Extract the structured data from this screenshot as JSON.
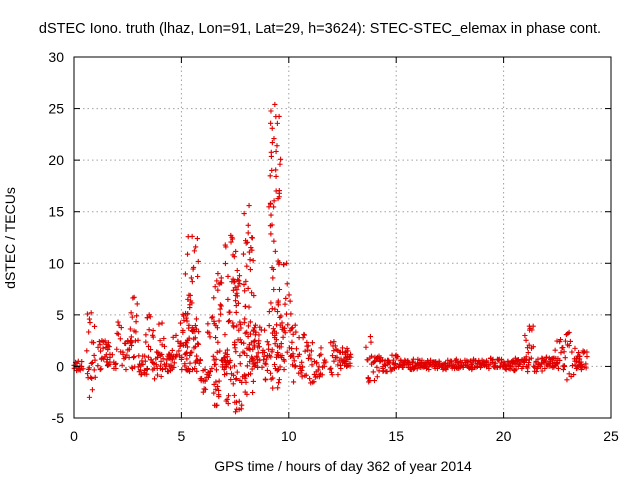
{
  "chart_data": {
    "type": "scatter",
    "title": "dSTEC Iono. truth (lhaz, Lon=91, Lat=29, h=3624): STEC-STEC_elemax in phase cont.",
    "xlabel": "GPS time / hours of day 362 of year 2014",
    "ylabel": "dSTEC  / TECUs",
    "xlim": [
      0,
      25
    ],
    "ylim": [
      -5,
      30
    ],
    "x_ticks": [
      0,
      5,
      10,
      15,
      20,
      25
    ],
    "x_tick_labels": [
      "0",
      "5",
      "10",
      "15",
      "20",
      "25"
    ],
    "y_ticks": [
      -5,
      0,
      5,
      10,
      15,
      20,
      25,
      30
    ],
    "y_tick_labels": [
      "-5",
      "0",
      "5",
      "10",
      "15",
      "20",
      "25",
      "30"
    ],
    "grid": true,
    "legend": "none",
    "marker": "plus",
    "color": "#e00000",
    "arcs": [
      {
        "x": [
          0.0,
          0.4
        ],
        "y": [
          -0.4,
          0.5
        ]
      },
      {
        "x": [
          0.6,
          1.0
        ],
        "y": [
          -3.0,
          5.2
        ]
      },
      {
        "x": [
          1.1,
          1.5
        ],
        "y": [
          -0.3,
          2.5
        ]
      },
      {
        "x": [
          1.5,
          1.7
        ],
        "y": [
          0.1,
          2.3
        ]
      },
      {
        "x": [
          1.8,
          2.3
        ],
        "y": [
          -0.2,
          4.3
        ]
      },
      {
        "x": [
          2.3,
          2.7
        ],
        "y": [
          -0.3,
          2.5
        ]
      },
      {
        "x": [
          2.6,
          3.0
        ],
        "y": [
          -0.2,
          6.7
        ]
      },
      {
        "x": [
          3.0,
          3.4
        ],
        "y": [
          -0.8,
          1.0
        ]
      },
      {
        "x": [
          3.3,
          3.7
        ],
        "y": [
          -0.2,
          5.0
        ]
      },
      {
        "x": [
          3.6,
          4.1
        ],
        "y": [
          -1.2,
          1.4
        ]
      },
      {
        "x": [
          3.9,
          4.3
        ],
        "y": [
          -0.2,
          4.2
        ]
      },
      {
        "x": [
          4.3,
          4.6
        ],
        "y": [
          -0.5,
          1.2
        ]
      },
      {
        "x": [
          4.5,
          5.0
        ],
        "y": [
          -0.1,
          3.0
        ]
      },
      {
        "x": [
          4.9,
          5.3
        ],
        "y": [
          -0.3,
          4.9
        ]
      },
      {
        "x": [
          5.1,
          5.5
        ],
        "y": [
          -0.3,
          6.5
        ]
      },
      {
        "x": [
          5.2,
          5.8
        ],
        "y": [
          -0.5,
          12.6
        ]
      },
      {
        "x": [
          5.5,
          5.9
        ],
        "y": [
          -0.2,
          4.6
        ]
      },
      {
        "x": [
          5.9,
          6.3
        ],
        "y": [
          -2.5,
          -0.3
        ]
      },
      {
        "x": [
          6.2,
          6.7
        ],
        "y": [
          -0.5,
          4.8
        ]
      },
      {
        "x": [
          6.5,
          6.9
        ],
        "y": [
          -3.8,
          9.0
        ]
      },
      {
        "x": [
          6.9,
          7.2
        ],
        "y": [
          -0.3,
          1.3
        ]
      },
      {
        "x": [
          7.0,
          7.6
        ],
        "y": [
          -3.6,
          12.7
        ]
      },
      {
        "x": [
          7.4,
          7.8
        ],
        "y": [
          -4.4,
          9.3
        ]
      },
      {
        "x": [
          7.7,
          8.2
        ],
        "y": [
          -1.0,
          4.6
        ]
      },
      {
        "x": [
          7.9,
          8.4
        ],
        "y": [
          -2.7,
          15.6
        ]
      },
      {
        "x": [
          8.3,
          8.6
        ],
        "y": [
          0.0,
          4.0
        ]
      },
      {
        "x": [
          8.4,
          8.9
        ],
        "y": [
          -0.1,
          3.8
        ]
      },
      {
        "x": [
          8.8,
          9.2
        ],
        "y": [
          -1.3,
          2.4
        ]
      },
      {
        "x": [
          9.1,
          9.6
        ],
        "y": [
          -2.1,
          25.4
        ]
      },
      {
        "x": [
          9.4,
          9.8
        ],
        "y": [
          -0.3,
          4.0
        ]
      },
      {
        "x": [
          9.6,
          10.2
        ],
        "y": [
          -0.3,
          10.0
        ]
      },
      {
        "x": [
          10.1,
          10.5
        ],
        "y": [
          -1.5,
          4.0
        ]
      },
      {
        "x": [
          10.5,
          10.9
        ],
        "y": [
          -1.0,
          3.1
        ]
      },
      {
        "x": [
          10.9,
          11.3
        ],
        "y": [
          -1.6,
          2.3
        ]
      },
      {
        "x": [
          11.3,
          11.7
        ],
        "y": [
          -1.0,
          1.8
        ]
      },
      {
        "x": [
          11.9,
          12.3
        ],
        "y": [
          -0.8,
          2.4
        ]
      },
      {
        "x": [
          12.3,
          12.7
        ],
        "y": [
          -0.2,
          1.8
        ]
      },
      {
        "x": [
          12.6,
          12.9
        ],
        "y": [
          0.0,
          1.5
        ]
      },
      {
        "x": [
          13.6,
          14.0
        ],
        "y": [
          -1.5,
          2.9
        ]
      },
      {
        "x": [
          14.0,
          14.4
        ],
        "y": [
          -1.0,
          1.0
        ]
      },
      {
        "x": [
          14.4,
          14.8
        ],
        "y": [
          -0.5,
          0.6
        ]
      },
      {
        "x": [
          14.8,
          15.2
        ],
        "y": [
          -0.2,
          1.1
        ]
      },
      {
        "x": [
          15.2,
          15.6
        ],
        "y": [
          -0.1,
          0.6
        ]
      },
      {
        "x": [
          15.6,
          16.0
        ],
        "y": [
          -0.3,
          0.7
        ]
      },
      {
        "x": [
          16.0,
          16.4
        ],
        "y": [
          -0.1,
          0.6
        ]
      },
      {
        "x": [
          16.4,
          16.8
        ],
        "y": [
          -0.3,
          0.6
        ]
      },
      {
        "x": [
          16.8,
          17.2
        ],
        "y": [
          -0.2,
          0.5
        ]
      },
      {
        "x": [
          17.2,
          17.6
        ],
        "y": [
          -0.3,
          0.6
        ]
      },
      {
        "x": [
          17.6,
          18.0
        ],
        "y": [
          -0.2,
          0.7
        ]
      },
      {
        "x": [
          18.0,
          18.4
        ],
        "y": [
          -0.1,
          0.6
        ]
      },
      {
        "x": [
          18.4,
          18.8
        ],
        "y": [
          -0.3,
          0.7
        ]
      },
      {
        "x": [
          18.8,
          19.2
        ],
        "y": [
          -0.1,
          0.6
        ]
      },
      {
        "x": [
          19.2,
          19.6
        ],
        "y": [
          -0.2,
          0.8
        ]
      },
      {
        "x": [
          19.6,
          20.0
        ],
        "y": [
          -0.1,
          0.7
        ]
      },
      {
        "x": [
          20.0,
          20.4
        ],
        "y": [
          -0.3,
          0.5
        ]
      },
      {
        "x": [
          20.4,
          20.7
        ],
        "y": [
          -0.4,
          0.8
        ]
      },
      {
        "x": [
          20.7,
          21.2
        ],
        "y": [
          -0.2,
          0.7
        ]
      },
      {
        "x": [
          21.0,
          21.4
        ],
        "y": [
          -0.5,
          3.9
        ]
      },
      {
        "x": [
          21.4,
          21.8
        ],
        "y": [
          -0.5,
          0.7
        ]
      },
      {
        "x": [
          21.8,
          22.2
        ],
        "y": [
          -0.2,
          0.9
        ]
      },
      {
        "x": [
          22.2,
          22.5
        ],
        "y": [
          -0.1,
          0.8
        ]
      },
      {
        "x": [
          22.4,
          22.9
        ],
        "y": [
          -0.2,
          2.6
        ]
      },
      {
        "x": [
          22.8,
          23.3
        ],
        "y": [
          -1.3,
          3.3
        ]
      },
      {
        "x": [
          23.3,
          23.6
        ],
        "y": [
          -0.2,
          1.0
        ]
      },
      {
        "x": [
          23.5,
          23.9
        ],
        "y": [
          -0.3,
          1.5
        ]
      }
    ]
  }
}
